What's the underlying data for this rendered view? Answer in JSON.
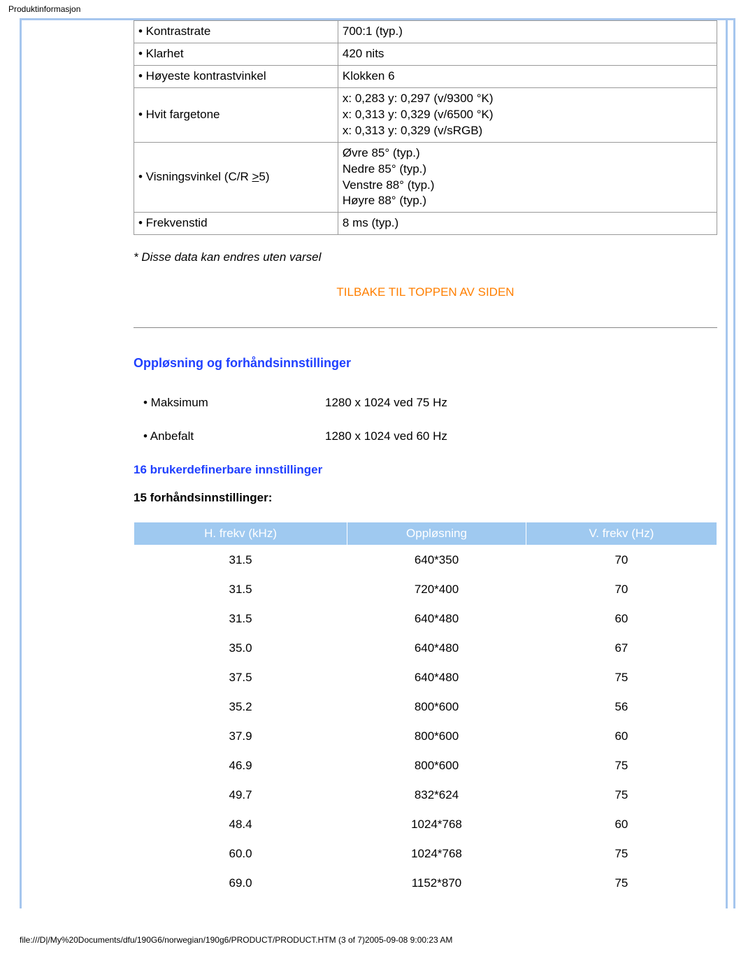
{
  "page_header": "Produktinformasjon",
  "spec_table": {
    "rows": [
      {
        "label": "• Kontrastrate",
        "value": "700:1 (typ.)"
      },
      {
        "label": "• Klarhet",
        "value": "420 nits"
      },
      {
        "label": "• Høyeste kontrastvinkel",
        "value": "Klokken 6"
      },
      {
        "label": "• Hvit fargetone",
        "value": "x: 0,283 y: 0,297 (v/9300 °K)\nx: 0,313 y: 0,329 (v/6500 °K)\nx: 0,313 y: 0,329 (v/sRGB)"
      },
      {
        "label": "• Visningsvinkel (C/R ",
        "label_underlined": ">",
        "label_after": "5)",
        "value": "Øvre 85° (typ.)\nNedre 85° (typ.)\nVenstre 88° (typ.)\nHøyre 88° (typ.)"
      },
      {
        "label": "• Frekvenstid",
        "value": "8 ms (typ.)"
      }
    ]
  },
  "disclaimer": "* Disse data kan endres uten varsel",
  "back_to_top": "TILBAKE TIL TOPPEN AV SIDEN",
  "section_heading": "Oppløsning og forhåndsinnstillinger",
  "resolution": {
    "rows": [
      {
        "label": "• Maksimum",
        "value": "1280 x 1024 ved 75 Hz"
      },
      {
        "label": "• Anbefalt",
        "value": "1280 x 1024 ved 60 Hz"
      }
    ]
  },
  "user_definable_heading": "16 brukerdefinerbare innstillinger",
  "presets_heading": "15 forhåndsinnstillinger:",
  "preset_table": {
    "header_bg": "#9fc9f0",
    "header_fg": "#ffffff",
    "columns": [
      "H. frekv (kHz)",
      "Oppløsning",
      "V. frekv (Hz)"
    ],
    "rows": [
      [
        "31.5",
        "640*350",
        "70"
      ],
      [
        "31.5",
        "720*400",
        "70"
      ],
      [
        "31.5",
        "640*480",
        "60"
      ],
      [
        "35.0",
        "640*480",
        "67"
      ],
      [
        "37.5",
        "640*480",
        "75"
      ],
      [
        "35.2",
        "800*600",
        "56"
      ],
      [
        "37.9",
        "800*600",
        "60"
      ],
      [
        "46.9",
        "800*600",
        "75"
      ],
      [
        "49.7",
        "832*624",
        "75"
      ],
      [
        "48.4",
        "1024*768",
        "60"
      ],
      [
        "60.0",
        "1024*768",
        "75"
      ],
      [
        "69.0",
        "1152*870",
        "75"
      ]
    ]
  },
  "footer_path": "file:///D|/My%20Documents/dfu/190G6/norwegian/190g6/PRODUCT/PRODUCT.HTM (3 of 7)2005-09-08 9:00:23 AM"
}
